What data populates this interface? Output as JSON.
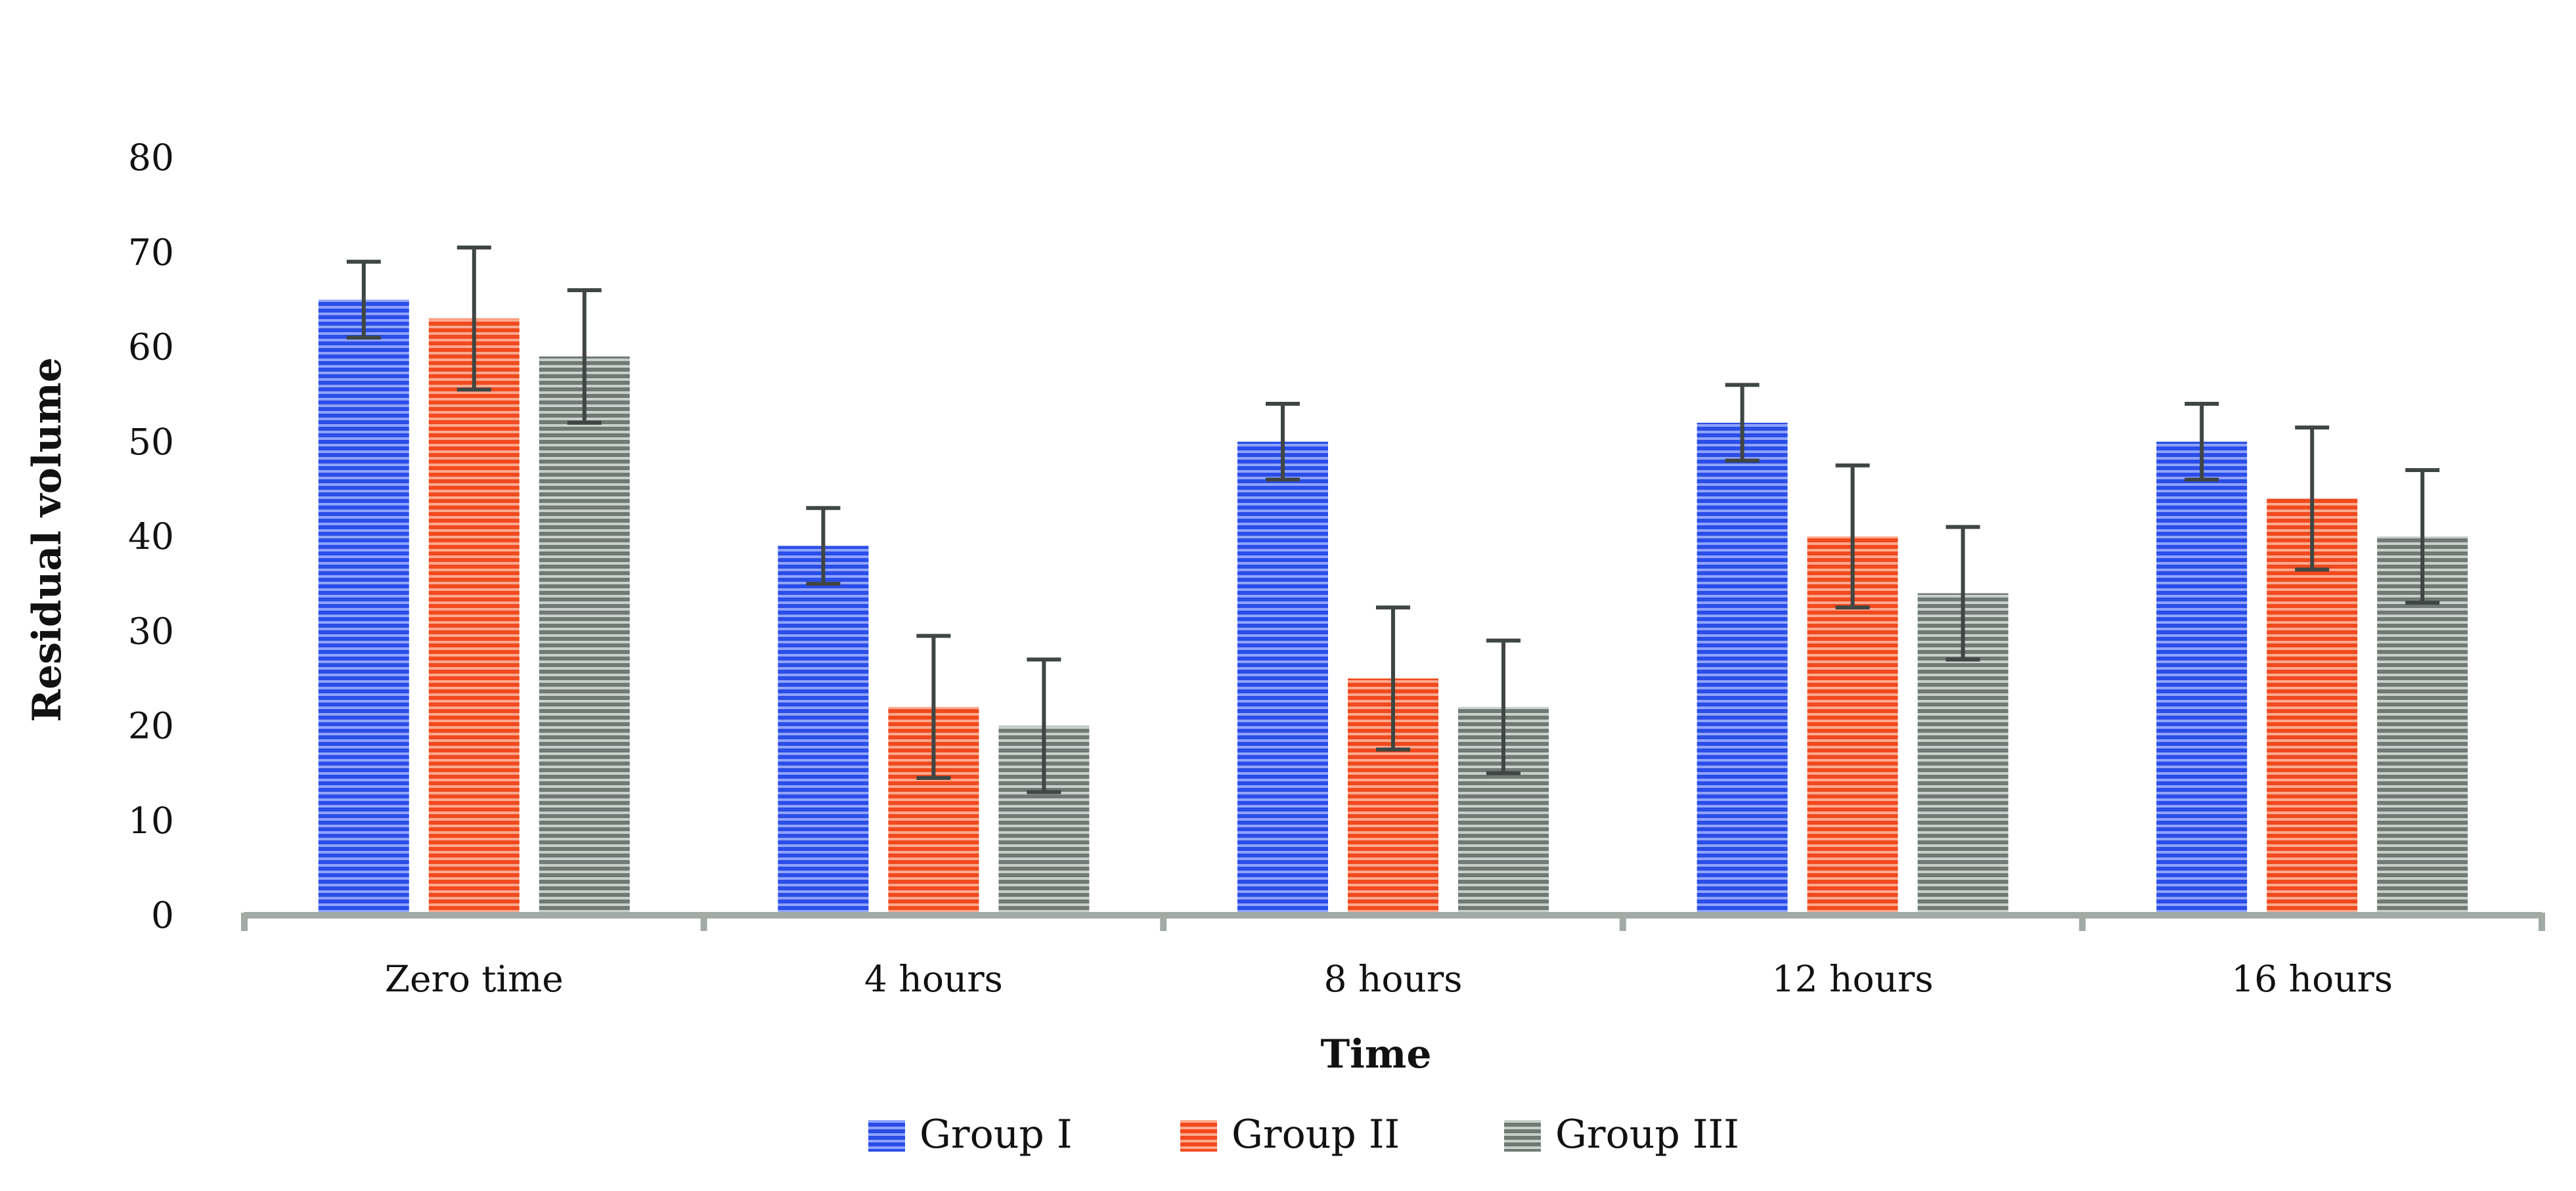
{
  "chart_data": {
    "type": "bar",
    "title": "",
    "xlabel": "Time",
    "ylabel": "Residual volume",
    "ylim": [
      0,
      80
    ],
    "yticks": [
      0,
      10,
      20,
      30,
      40,
      50,
      60,
      70,
      80
    ],
    "grid": false,
    "legend_position": "bottom",
    "categories": [
      "Zero time",
      "4 hours",
      "8 hours",
      "12 hours",
      "16 hours"
    ],
    "series": [
      {
        "name": "Group I",
        "color": "#2b4de8",
        "values": [
          65,
          39,
          50,
          52,
          50
        ],
        "error": [
          4,
          4,
          4,
          4,
          4
        ]
      },
      {
        "name": "Group II",
        "color": "#f04a1e",
        "values": [
          63,
          22,
          25,
          40,
          44
        ],
        "error": [
          7.5,
          7.5,
          7.5,
          7.5,
          7.5
        ]
      },
      {
        "name": "Group III",
        "color": "#7e8a85",
        "values": [
          59,
          20,
          22,
          34,
          40
        ],
        "error": [
          7,
          7,
          7,
          7,
          7
        ]
      }
    ]
  }
}
